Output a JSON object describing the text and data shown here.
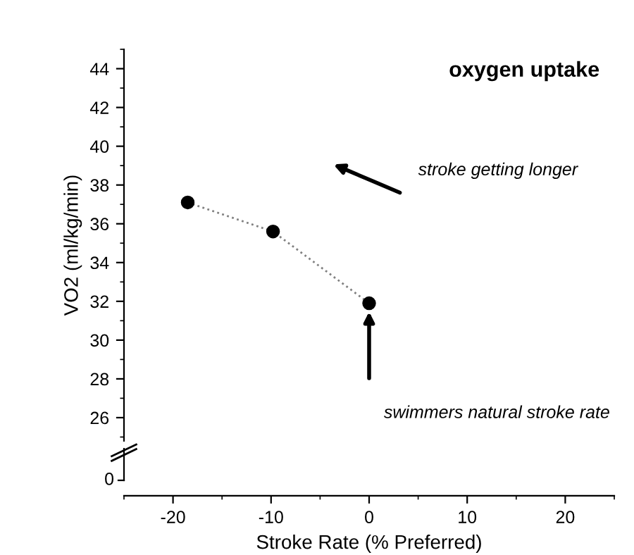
{
  "chart_data": {
    "type": "line",
    "title": "oxygen uptake",
    "xlabel": "Stroke Rate (% Preferred)",
    "ylabel": "VO2 (ml/kg/min)",
    "x": [
      -18.5,
      -9.8,
      0
    ],
    "series": [
      {
        "color": "#808080",
        "line_style": "dotted",
        "marker": "none",
        "values": [
          37.1,
          35.6,
          31.9
        ]
      },
      {
        "type": "scatter",
        "color": "#000000",
        "marker": "circle",
        "values": [
          37.1,
          35.6,
          31.9
        ]
      }
    ],
    "xlim": [
      -25,
      25
    ],
    "xticks": [
      -20,
      -10,
      0,
      10,
      20
    ],
    "ylim": [
      24.8,
      45
    ],
    "yticks": [
      26,
      28,
      30,
      32,
      34,
      36,
      38,
      40,
      42,
      44
    ],
    "annotations": [
      "stroke getting longer",
      "swimmers natural stroke rate",
      "0"
    ],
    "grid": false,
    "legend": false
  }
}
